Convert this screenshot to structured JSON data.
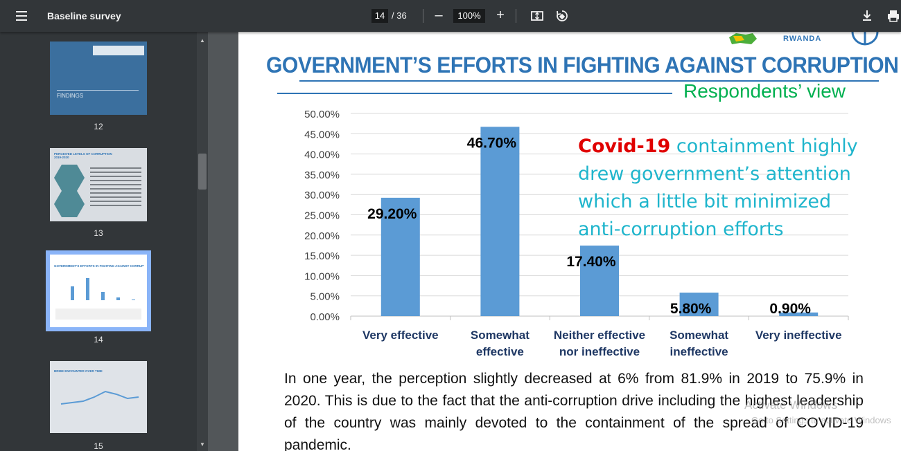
{
  "toolbar": {
    "title": "Baseline survey",
    "current_page": "14",
    "page_separator": "/ 36",
    "zoom": "100%",
    "zoom_out_label": "–",
    "zoom_in_label": "+"
  },
  "sidebar": {
    "thumbnails": [
      {
        "page": "12",
        "heading": "FINDINGS"
      },
      {
        "page": "13",
        "heading": "PERCEIVED LEVELS OF CORRUPTION 2019-2020"
      },
      {
        "page": "14",
        "heading": "GOVERNMENT'S EFFORTS IN FIGHTING AGAINST CORRUPTION",
        "selected": true
      },
      {
        "page": "15",
        "heading": "BRIBE ENCOUNTER OVER TIME"
      }
    ]
  },
  "slide": {
    "logo_text": "RWANDA",
    "title": "GOVERNMENT’S EFFORTS IN FIGHTING AGAINST CORRUPTION",
    "subtitle": "Respondents’ view",
    "covid_highlight": "Covid-19",
    "covid_text": " containment highly drew government’s attention which a little  bit minimized anti-corruption efforts",
    "body_text": "In one year, the perception slightly decreased at 6% from 81.9% in 2019 to 75.9% in 2020. This is due to the fact that the anti-corruption drive including the highest leadership of the country was mainly devoted to the containment of the spread of COVID-19 pandemic.",
    "watermark": "Activate Windows",
    "watermark_sub": "Go to Settings to activate Windows"
  },
  "chart_data": {
    "type": "bar",
    "categories": [
      "Very effective",
      "Somewhat effective",
      "Neither effective nor ineffective",
      "Somewhat ineffective",
      "Very ineffective"
    ],
    "category_lines": [
      [
        "Very effective"
      ],
      [
        "Somewhat",
        "effective"
      ],
      [
        "Neither effective",
        "nor ineffective"
      ],
      [
        "Somewhat",
        "ineffective"
      ],
      [
        "Very ineffective"
      ]
    ],
    "values": [
      29.2,
      46.7,
      17.4,
      5.8,
      0.9
    ],
    "data_labels": [
      "29.20%",
      "46.70%",
      "17.40%",
      "5.80%",
      "0.90%"
    ],
    "y_ticks": [
      "0.00%",
      "5.00%",
      "10.00%",
      "15.00%",
      "20.00%",
      "25.00%",
      "30.00%",
      "35.00%",
      "40.00%",
      "45.00%",
      "50.00%"
    ],
    "ylim": [
      0,
      50
    ],
    "grid": true,
    "bar_color": "#5b9bd5",
    "title": "",
    "xlabel": "",
    "ylabel": ""
  },
  "colors": {
    "toolbar_bg": "#323639",
    "title_blue": "#2e74b5",
    "subtitle_green": "#00b050",
    "covid_red": "#e00000",
    "note_cyan": "#1fb5cc"
  }
}
